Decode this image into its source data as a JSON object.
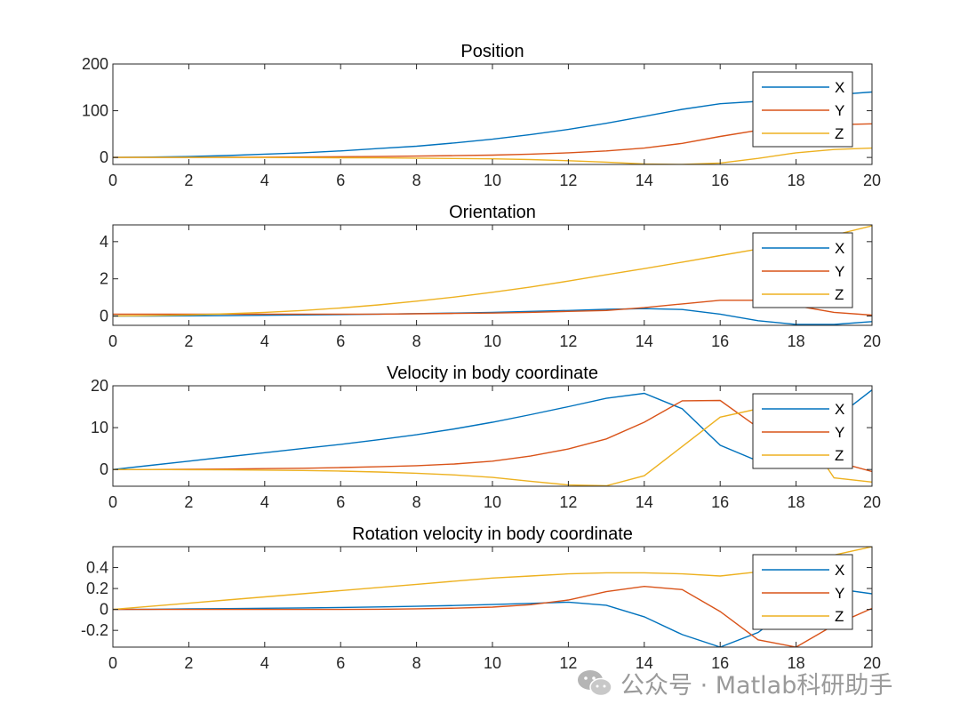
{
  "chart_data": [
    {
      "type": "line",
      "title": "Position",
      "xlim": [
        0,
        20
      ],
      "ylim": [
        -15,
        200
      ],
      "xticks": [
        0,
        2,
        4,
        6,
        8,
        10,
        12,
        14,
        16,
        18,
        20
      ],
      "yticks": [
        0,
        100,
        200
      ],
      "legend": "top-right",
      "x": [
        0,
        1,
        2,
        3,
        4,
        5,
        6,
        7,
        8,
        9,
        10,
        11,
        12,
        13,
        14,
        15,
        16,
        17,
        18,
        19,
        20
      ],
      "series": [
        {
          "name": "X",
          "color": "#0072BD",
          "values": [
            0,
            0.8,
            2,
            4,
            7,
            10,
            14,
            19,
            24,
            31,
            39,
            49,
            60,
            73,
            88,
            103,
            115,
            120,
            128,
            134,
            140
          ]
        },
        {
          "name": "Y",
          "color": "#D95319",
          "values": [
            0,
            0,
            0,
            0.3,
            0.6,
            1,
            1.5,
            2,
            2.8,
            3.8,
            5,
            7,
            10,
            14,
            20,
            30,
            45,
            58,
            68,
            70,
            72
          ]
        },
        {
          "name": "Z",
          "color": "#EDB120",
          "values": [
            0,
            0,
            0,
            0,
            -0.2,
            -0.4,
            -0.7,
            -1,
            -1.5,
            -2.2,
            -3,
            -4.5,
            -7,
            -10,
            -14,
            -15,
            -12,
            -2,
            10,
            17,
            20
          ]
        }
      ]
    },
    {
      "type": "line",
      "title": "Orientation",
      "xlim": [
        0,
        20
      ],
      "ylim": [
        -0.5,
        4.9
      ],
      "xticks": [
        0,
        2,
        4,
        6,
        8,
        10,
        12,
        14,
        16,
        18,
        20
      ],
      "yticks": [
        0,
        2,
        4
      ],
      "legend": "top-right",
      "x": [
        0,
        1,
        2,
        3,
        4,
        5,
        6,
        7,
        8,
        9,
        10,
        11,
        12,
        13,
        14,
        15,
        16,
        17,
        18,
        19,
        20
      ],
      "series": [
        {
          "name": "X",
          "color": "#0072BD",
          "values": [
            0,
            0,
            0.01,
            0.02,
            0.04,
            0.06,
            0.08,
            0.1,
            0.13,
            0.16,
            0.2,
            0.25,
            0.3,
            0.36,
            0.4,
            0.35,
            0.1,
            -0.25,
            -0.45,
            -0.45,
            -0.3
          ]
        },
        {
          "name": "Y",
          "color": "#D95319",
          "values": [
            0.1,
            0.1,
            0.1,
            0.1,
            0.1,
            0.1,
            0.1,
            0.1,
            0.12,
            0.14,
            0.16,
            0.2,
            0.25,
            0.3,
            0.45,
            0.65,
            0.85,
            0.85,
            0.55,
            0.2,
            0.05
          ]
        },
        {
          "name": "Z",
          "color": "#EDB120",
          "values": [
            0,
            0.02,
            0.06,
            0.12,
            0.2,
            0.3,
            0.43,
            0.6,
            0.8,
            1.02,
            1.28,
            1.56,
            1.88,
            2.22,
            2.55,
            2.9,
            3.25,
            3.6,
            3.95,
            4.35,
            4.85
          ]
        }
      ]
    },
    {
      "type": "line",
      "title": "Velocity in body coordinate",
      "xlim": [
        0,
        20
      ],
      "ylim": [
        -4,
        20
      ],
      "xticks": [
        0,
        2,
        4,
        6,
        8,
        10,
        12,
        14,
        16,
        18,
        20
      ],
      "yticks": [
        0,
        10,
        20
      ],
      "legend": "top-right",
      "x": [
        0,
        1,
        2,
        3,
        4,
        5,
        6,
        7,
        8,
        9,
        10,
        11,
        12,
        13,
        14,
        15,
        16,
        17,
        18,
        19,
        20
      ],
      "series": [
        {
          "name": "X",
          "color": "#0072BD",
          "values": [
            0,
            1,
            2,
            3,
            4,
            5,
            6,
            7.1,
            8.3,
            9.7,
            11.3,
            13.1,
            15,
            17,
            18.2,
            14.5,
            5.8,
            2,
            3,
            12,
            19
          ]
        },
        {
          "name": "Y",
          "color": "#D95319",
          "values": [
            0,
            0,
            0.05,
            0.1,
            0.2,
            0.3,
            0.45,
            0.65,
            0.9,
            1.3,
            2,
            3.2,
            4.9,
            7.3,
            11.3,
            16.4,
            16.5,
            10,
            4,
            2,
            -0.5
          ]
        },
        {
          "name": "Z",
          "color": "#EDB120",
          "values": [
            0,
            0,
            -0.05,
            -0.1,
            -0.15,
            -0.25,
            -0.4,
            -0.6,
            -0.9,
            -1.3,
            -1.9,
            -2.8,
            -3.7,
            -3.9,
            -1.5,
            5.5,
            12.5,
            14.5,
            11.5,
            -2,
            -3
          ]
        }
      ]
    },
    {
      "type": "line",
      "title": "Rotation velocity in body coordinate",
      "xlim": [
        0,
        20
      ],
      "ylim": [
        -0.36,
        0.6
      ],
      "xticks": [
        0,
        2,
        4,
        6,
        8,
        10,
        12,
        14,
        16,
        18,
        20
      ],
      "yticks": [
        0.4,
        0.2,
        0,
        -0.2
      ],
      "ytick_labels": [
        "0.4",
        "0.2",
        "0",
        "-0.2"
      ],
      "legend": "top-right",
      "x": [
        0,
        1,
        2,
        3,
        4,
        5,
        6,
        7,
        8,
        9,
        10,
        11,
        12,
        13,
        14,
        15,
        16,
        17,
        18,
        19,
        20
      ],
      "series": [
        {
          "name": "X",
          "color": "#0072BD",
          "values": [
            0,
            0.002,
            0.005,
            0.008,
            0.011,
            0.015,
            0.019,
            0.024,
            0.03,
            0.038,
            0.047,
            0.058,
            0.07,
            0.04,
            -0.07,
            -0.24,
            -0.36,
            -0.22,
            0.05,
            0.2,
            0.15
          ]
        },
        {
          "name": "Y",
          "color": "#D95319",
          "values": [
            0,
            0,
            0,
            0,
            0,
            0,
            0,
            0.002,
            0.006,
            0.012,
            0.022,
            0.045,
            0.09,
            0.17,
            0.22,
            0.19,
            -0.02,
            -0.29,
            -0.36,
            -0.15,
            0.01
          ]
        },
        {
          "name": "Z",
          "color": "#EDB120",
          "values": [
            0,
            0.03,
            0.06,
            0.09,
            0.12,
            0.15,
            0.18,
            0.21,
            0.24,
            0.27,
            0.3,
            0.32,
            0.34,
            0.35,
            0.35,
            0.34,
            0.32,
            0.36,
            0.43,
            0.52,
            0.6
          ]
        }
      ]
    }
  ],
  "watermark": {
    "text": "公众号 · Matlab科研助手"
  }
}
